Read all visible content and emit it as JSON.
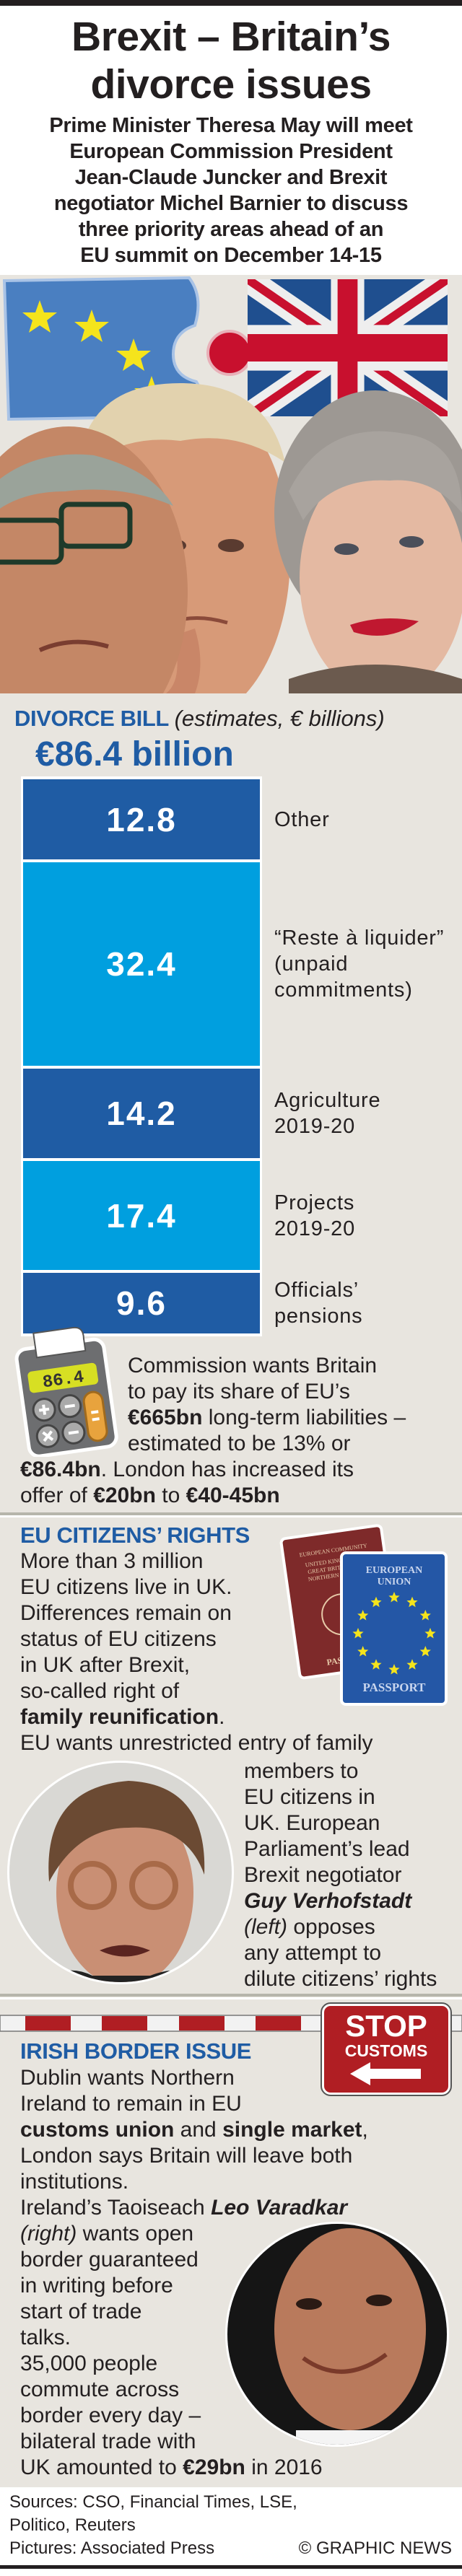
{
  "header": {
    "title_lines": [
      "Brexit – Britain’s",
      "divorce issues"
    ],
    "subtitle_lines": [
      "Prime Minister Theresa May will meet",
      "European Commission President",
      "Jean-Claude Juncker and Brexit",
      "negotiator Michel Barnier to discuss",
      "three priority areas ahead of an",
      "EU summit on December 14-15"
    ]
  },
  "colors": {
    "dark_blue": "#1f5ca4",
    "light_blue": "#009fdf",
    "background": "#e8e5df",
    "stop_red": "#b01e23"
  },
  "divorce": {
    "heading": "DIVORCE BILL",
    "heading_note": "(estimates, € billions)",
    "total": "€86.4 billion",
    "calculator_display": "86.4",
    "text": [
      [
        {
          "t": "Commission wants Britain"
        }
      ],
      [
        {
          "t": "to pay its share of EU’s"
        }
      ],
      [
        {
          "t": "€665bn",
          "b": 1
        },
        {
          "t": " long-term liabilities –"
        }
      ],
      [
        {
          "t": "estimated to be 13% or"
        }
      ],
      [
        {
          "t": "€86.4bn",
          "b": 1
        },
        {
          "t": ". London has increased its"
        }
      ],
      [
        {
          "t": "offer of "
        },
        {
          "t": "€20bn",
          "b": 1
        },
        {
          "t": " to "
        },
        {
          "t": "€40-45bn",
          "b": 1
        }
      ]
    ]
  },
  "chart_data": {
    "type": "bar",
    "stacked": true,
    "title": "DIVORCE BILL (estimates, € billions)",
    "total_label": "€86.4 billion",
    "categories": [
      "Other",
      "“Reste à liquider”\n(unpaid\ncommitments)",
      "Agriculture\n2019-20",
      "Projects\n2019-20",
      "Officials’\npensions"
    ],
    "values": [
      12.8,
      32.4,
      14.2,
      17.4,
      9.6
    ],
    "value_labels": [
      "12.8",
      "32.4",
      "14.2",
      "17.4",
      "9.6"
    ],
    "colors": [
      "#1f5ca4",
      "#009fdf",
      "#1f5ca4",
      "#009fdf",
      "#1f5ca4"
    ]
  },
  "citizens": {
    "heading": "EU CITIZENS’ RIGHTS",
    "passport_uk": {
      "top": "EUROPEAN COMMUNITY",
      "middle": "UNITED KINGDOM OF GREAT BRITAIN AND NORTHERN IRELAND",
      "bottom": "PASSPORT"
    },
    "passport_eu": {
      "top1": "EUROPEAN",
      "top2": "UNION",
      "bottom": "PASSPORT"
    },
    "text_left": [
      [
        {
          "t": "More than 3 million"
        }
      ],
      [
        {
          "t": "EU citizens live in UK."
        }
      ],
      [
        {
          "t": "Differences remain on"
        }
      ],
      [
        {
          "t": "status of EU citizens"
        }
      ],
      [
        {
          "t": "in UK after Brexit,"
        }
      ],
      [
        {
          "t": "so-called right of"
        }
      ],
      [
        {
          "t": "family reunification",
          "b": 1
        },
        {
          "t": "."
        }
      ],
      [
        {
          "t": "EU wants unrestricted entry of family"
        }
      ]
    ],
    "text_right": [
      [
        {
          "t": "members to"
        }
      ],
      [
        {
          "t": "EU citizens in"
        }
      ],
      [
        {
          "t": "UK. European"
        }
      ],
      [
        {
          "t": "Parliament’s lead"
        }
      ],
      [
        {
          "t": "Brexit negotiator"
        }
      ],
      [
        {
          "t": "Guy Verhofstadt",
          "b": 1,
          "i": 1
        }
      ],
      [
        {
          "t": "(left)",
          "i": 1
        },
        {
          "t": " opposes"
        }
      ],
      [
        {
          "t": "any attempt to"
        }
      ],
      [
        {
          "t": "dilute citizens’ rights"
        }
      ]
    ]
  },
  "irish": {
    "heading": "IRISH BORDER ISSUE",
    "sign_line1": "STOP",
    "sign_line2": "CUSTOMS",
    "text": [
      [
        {
          "t": "Dublin wants Northern"
        }
      ],
      [
        {
          "t": "Ireland to remain in EU"
        }
      ],
      [
        {
          "t": "customs union",
          "b": 1
        },
        {
          "t": " and "
        },
        {
          "t": "single market",
          "b": 1
        },
        {
          "t": ","
        }
      ],
      [
        {
          "t": "London says Britain will leave both"
        }
      ],
      [
        {
          "t": "institutions."
        }
      ],
      [
        {
          "t": "Ireland’s Taoiseach "
        },
        {
          "t": "Leo Varadkar",
          "b": 1,
          "i": 1
        }
      ],
      [
        {
          "t": "(right)",
          "i": 1
        },
        {
          "t": " wants open"
        }
      ],
      [
        {
          "t": "border guaranteed"
        }
      ],
      [
        {
          "t": "in writing before"
        }
      ],
      [
        {
          "t": "start of trade"
        }
      ],
      [
        {
          "t": "talks."
        }
      ],
      [
        {
          "t": "35,000 people"
        }
      ],
      [
        {
          "t": "commute across"
        }
      ],
      [
        {
          "t": "border every day –"
        }
      ],
      [
        {
          "t": "bilateral trade with"
        }
      ],
      [
        {
          "t": "UK amounted to "
        },
        {
          "t": "€29bn",
          "b": 1
        },
        {
          "t": " in 2016"
        }
      ]
    ]
  },
  "footer": {
    "sources_lines": [
      "Sources: CSO, Financial Times, LSE,",
      "Politico, Reuters"
    ],
    "pictures": "Pictures: Associated Press",
    "credit": "© GRAPHIC NEWS"
  }
}
